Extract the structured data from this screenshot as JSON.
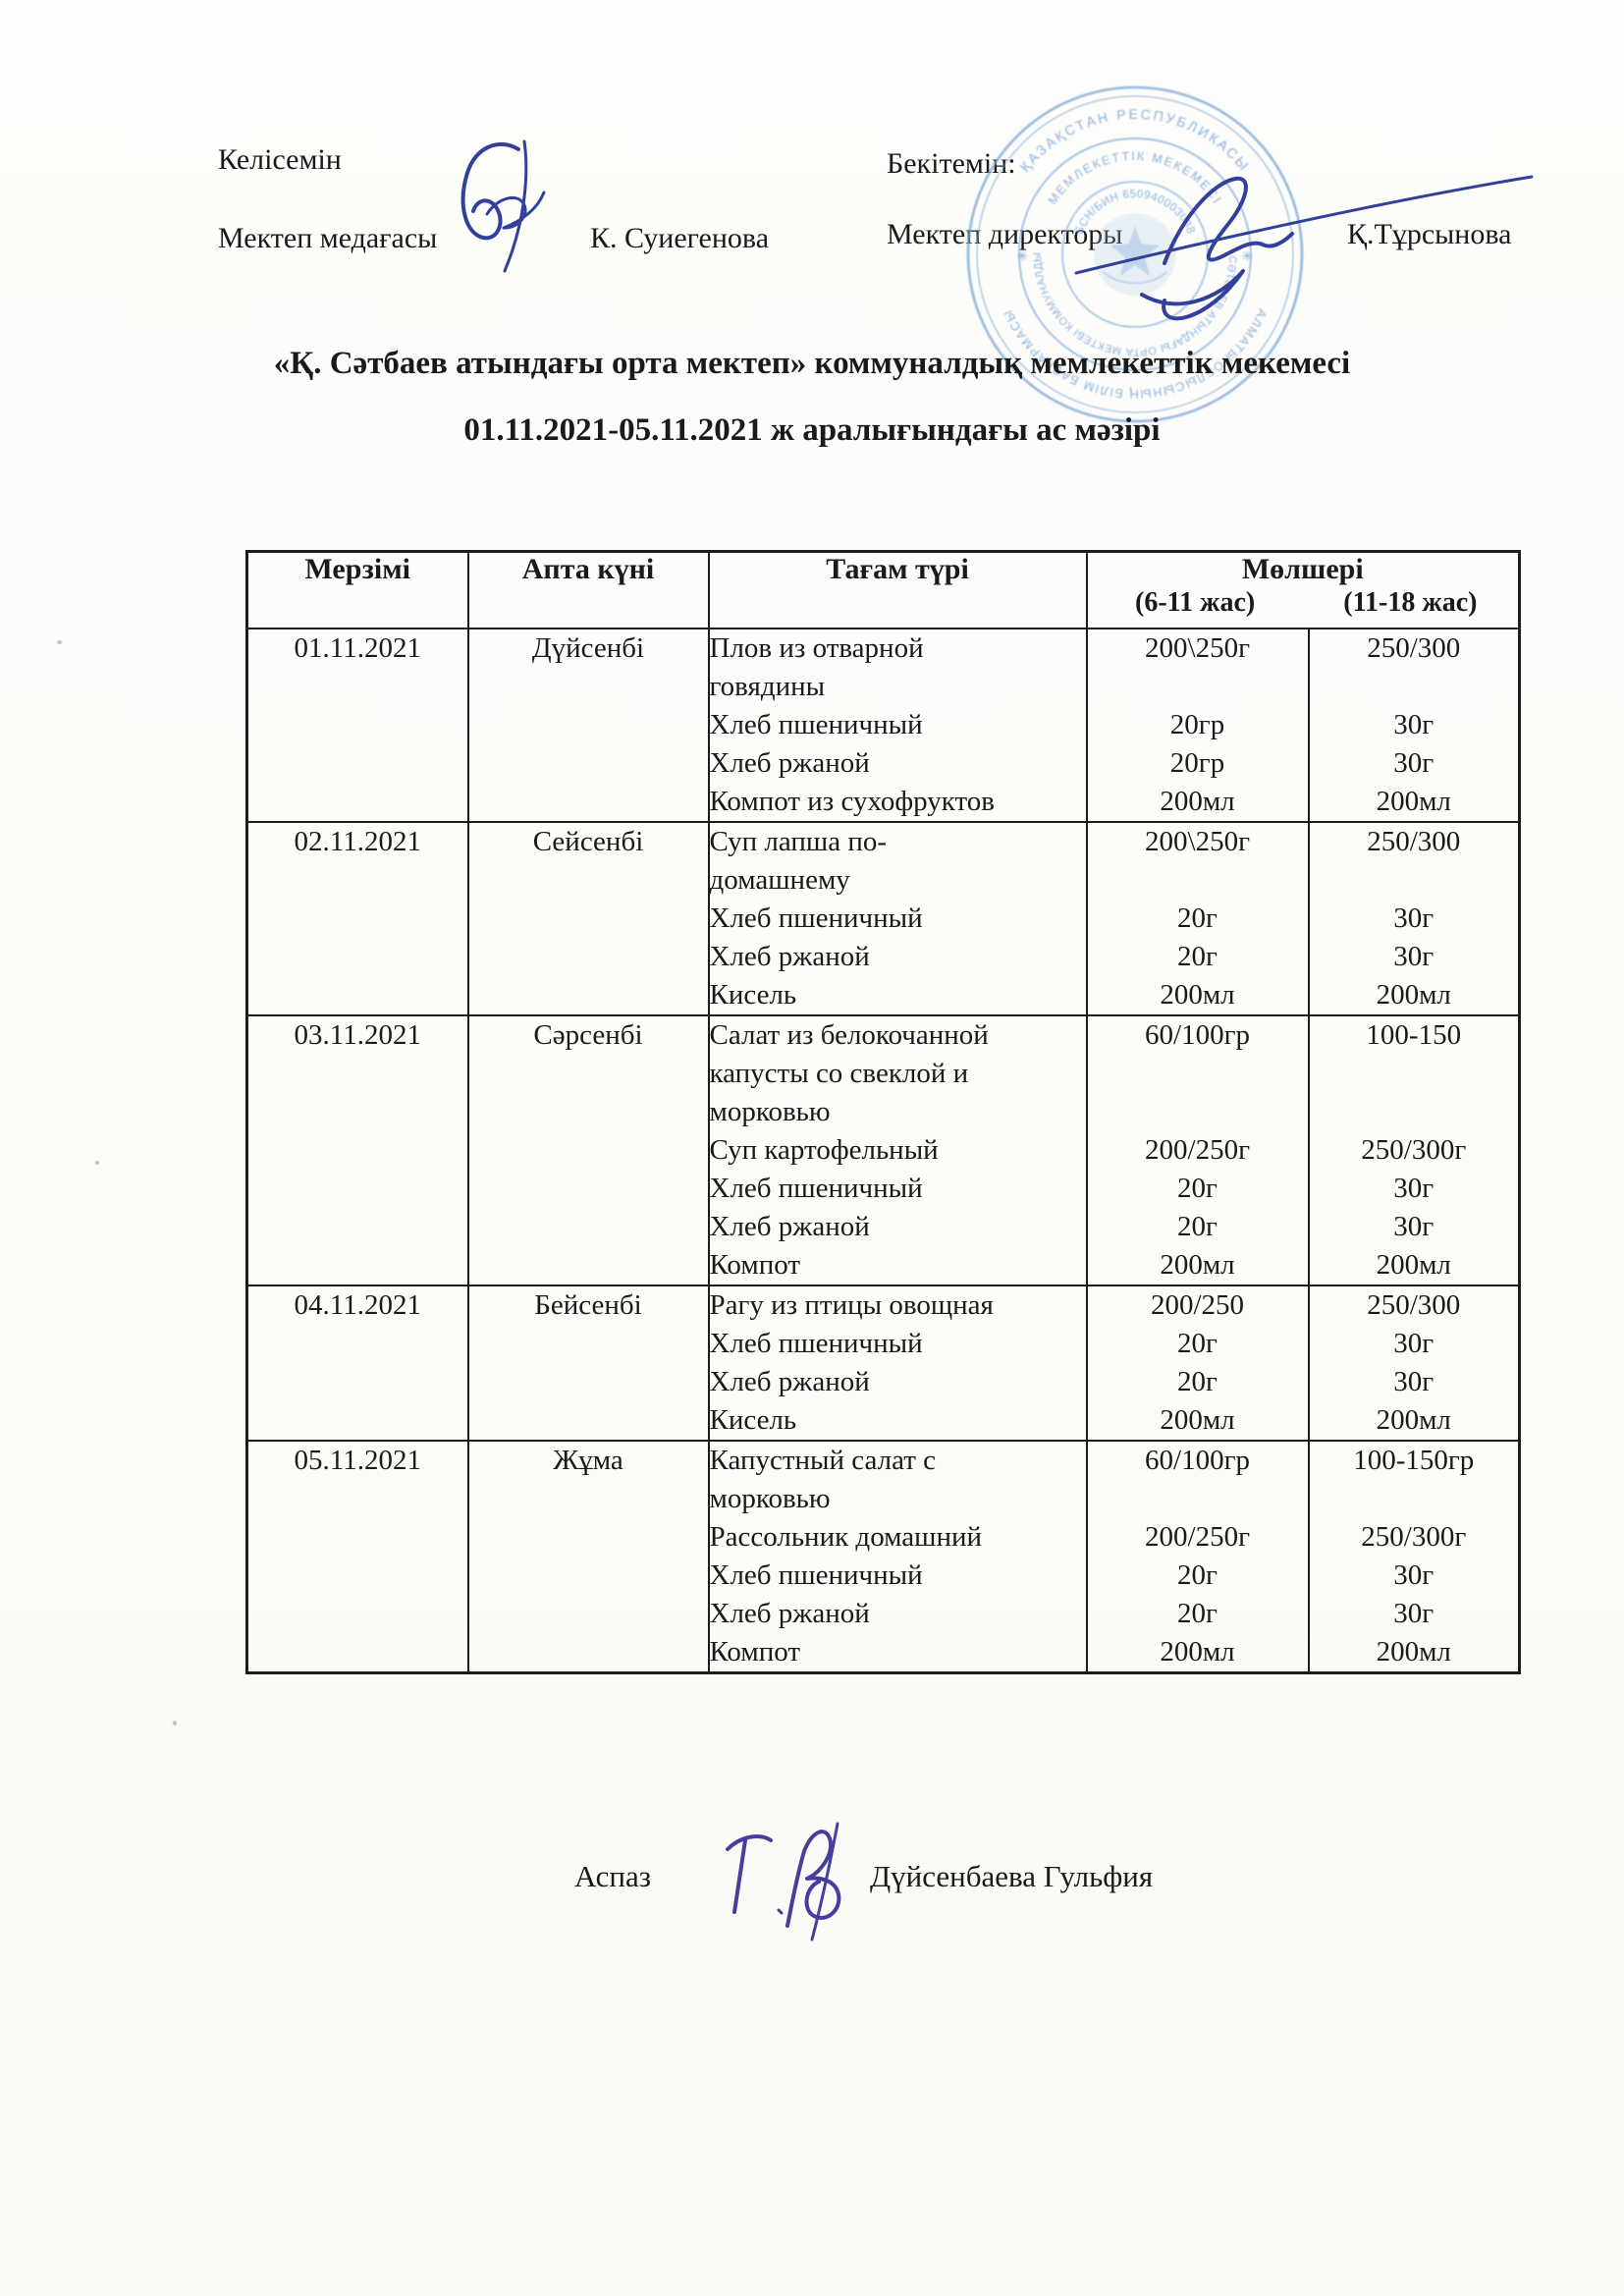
{
  "page": {
    "ink_color": "#1a1a1a",
    "signature_ink_color": "#32409b",
    "stamp_color": "#7ea9d9"
  },
  "header": {
    "left": {
      "label": "Келісемін",
      "role": "Мектеп медағасы",
      "name": "К. Суиегенова"
    },
    "right": {
      "label": "Бекітемін:",
      "role": "Мектеп директоры",
      "name": "Қ.Тұрсынова"
    }
  },
  "title": {
    "line1": "«Қ. Сәтбаев атындағы орта мектеп» коммуналдық мемлекеттік мекемесі",
    "line2": "01.11.2021-05.11.2021 ж аралығындағы ас мәзірі"
  },
  "stamp": {
    "outer_top": "ҚАЗАҚСТАН РЕСПУБЛИКАСЫ",
    "outer_bottom": "АЛМАТЫ ОБЛЫСЫНЫҢ БІЛІМ БАСҚАРМАСЫ",
    "mid_top": "МЕМЛЕКЕТТІК МЕКЕМЕСІ",
    "mid_bottom": "Қ.СӘТБАЕВ АТЫНДАҒЫ ОРТА МЕКТЕБІ КОММУНАЛДЫҚ",
    "inner_top": "БСН/БИН 650940003038"
  },
  "menu_table": {
    "headers": {
      "date": "Мерзімі",
      "weekday": "Апта күні",
      "dish": "Тағам түрі",
      "portion": "Мөлшері",
      "age_6_11": "(6-11 жас)",
      "age_11_18": "(11-18 жас)"
    },
    "rows": [
      {
        "date": "01.11.2021",
        "day": "Дүйсенбі",
        "dishes": [
          "Плов из отварной",
          "говядины",
          "Хлеб пшеничный",
          "Хлеб ржаной",
          "Компот из сухофруктов"
        ],
        "portions_6_11": [
          "200\\250г",
          "",
          "20гр",
          "20гр",
          "200мл"
        ],
        "portions_11_18": [
          "250/300",
          "",
          "30г",
          "30г",
          "200мл"
        ]
      },
      {
        "date": "02.11.2021",
        "day": "Сейсенбі",
        "dishes": [
          "Суп лапша по-",
          "домашнему",
          "Хлеб пшеничный",
          "Хлеб ржаной",
          "Кисель"
        ],
        "portions_6_11": [
          "200\\250г",
          "",
          "20г",
          "20г",
          "200мл"
        ],
        "portions_11_18": [
          "250/300",
          "",
          "30г",
          "30г",
          "200мл"
        ]
      },
      {
        "date": "03.11.2021",
        "day": "Сәрсенбі",
        "dishes": [
          "Салат из белокочанной",
          "капусты со свеклой и",
          "морковью",
          "Суп картофельный",
          "Хлеб пшеничный",
          "Хлеб ржаной",
          "Компот"
        ],
        "portions_6_11": [
          "60/100гр",
          "",
          "",
          "200/250г",
          "20г",
          "20г",
          "200мл"
        ],
        "portions_11_18": [
          "100-150",
          "",
          "",
          "250/300г",
          "30г",
          "30г",
          "200мл"
        ]
      },
      {
        "date": "04.11.2021",
        "day": "Бейсенбі",
        "dishes": [
          "Рагу из птицы овощная",
          "Хлеб пшеничный",
          "Хлеб ржаной",
          "Кисель"
        ],
        "portions_6_11": [
          "200/250",
          "20г",
          "20г",
          "200мл"
        ],
        "portions_11_18": [
          "250/300",
          "30г",
          "30г",
          "200мл"
        ]
      },
      {
        "date": "05.11.2021",
        "day": "Жұма",
        "dishes": [
          "Капустный салат с",
          "морковью",
          "Рассольник домашний",
          "Хлеб пшеничный",
          "Хлеб ржаной",
          "Компот"
        ],
        "portions_6_11": [
          "60/100гр",
          "",
          "200/250г",
          "20г",
          "20г",
          "200мл"
        ],
        "portions_11_18": [
          "100-150гр",
          "",
          "250/300г",
          "30г",
          "30г",
          "200мл"
        ]
      }
    ]
  },
  "footer": {
    "role": "Аспаз",
    "name": "Дүйсенбаева Гульфия"
  }
}
